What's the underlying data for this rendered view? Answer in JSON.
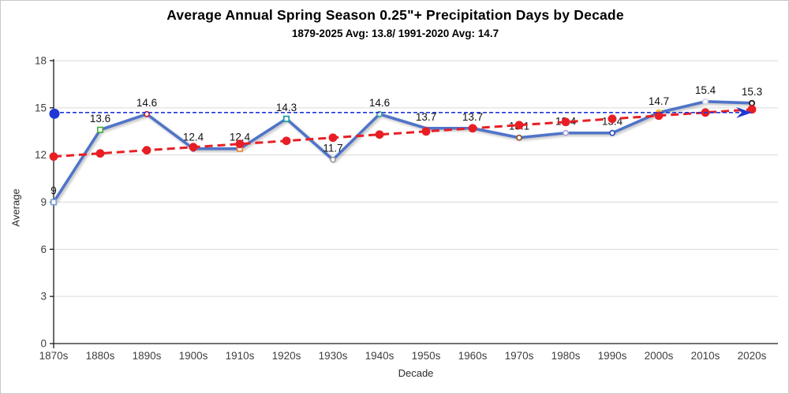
{
  "window": {
    "background": "#ffffff",
    "border_color": "#c8c8c8"
  },
  "chart_data": {
    "type": "line",
    "title": "Average Annual Spring Season 0.25\"+ Precipitation Days by Decade",
    "subtitle": "1879-2025 Avg: 13.8/ 1991-2020 Avg: 14.7",
    "xlabel": "Decade",
    "ylabel": "Average",
    "ylim": [
      0,
      18
    ],
    "yticks": [
      0,
      3,
      6,
      9,
      12,
      15,
      18
    ],
    "grid": "horizontal",
    "legend": "none",
    "categories": [
      "1870s",
      "1880s",
      "1890s",
      "1900s",
      "1910s",
      "1920s",
      "1930s",
      "1940s",
      "1950s",
      "1960s",
      "1970s",
      "1980s",
      "1990s",
      "2000s",
      "2010s",
      "2020s"
    ],
    "series": [
      {
        "name": "Average spring 0.25in+ precipitation days",
        "style": "solid-line",
        "color": "#4f74c9",
        "values": [
          9,
          13.6,
          14.6,
          12.4,
          12.4,
          14.3,
          11.7,
          14.6,
          13.7,
          13.7,
          13.1,
          13.4,
          13.4,
          14.7,
          15.4,
          15.3
        ],
        "data_labels": [
          "9",
          "13.6",
          "14.6",
          "12.4",
          "12.4",
          "14.3",
          "11.7",
          "14.6",
          "13.7",
          "13.7",
          "13.1",
          "13.4",
          "13.4",
          "14.7",
          "15.4",
          "15.3"
        ],
        "marker_colors": [
          "#7ba2dd",
          "#4caf3e",
          "#cc2130",
          "#7030a0",
          "#e78c2f",
          "#189e9b",
          "#9e9e9e",
          "#3aa6a0",
          null,
          null,
          "#8a5a2a",
          "#b0a3d4",
          "#3050c8",
          "#ffc000",
          "#d8d8ea",
          "#141414"
        ],
        "marker_shapes": [
          "square",
          "square",
          "circle",
          "circle",
          "square",
          "square",
          "circle",
          "circle",
          null,
          null,
          "circle",
          "circle",
          "circle",
          "circle",
          "circle",
          "circle"
        ]
      },
      {
        "name": "Linear trend",
        "style": "dashed-line",
        "color": "#e81e25",
        "marker": "filled-circle",
        "values": [
          11.9,
          12.1,
          12.3,
          12.5,
          12.7,
          12.9,
          13.1,
          13.3,
          13.5,
          13.7,
          13.9,
          14.1,
          14.3,
          14.5,
          14.7,
          14.9
        ]
      }
    ],
    "reference_line": {
      "name": "1991-2020 average",
      "value": 14.7,
      "color": "#2038d5",
      "style": "dashed",
      "start_dot": true,
      "end_arrow": true
    },
    "colors": {
      "gridline": "#d9d9d9",
      "axis": "#1a1a1a",
      "tick_label": "#3f3f3f",
      "data_label": "#111111"
    }
  }
}
